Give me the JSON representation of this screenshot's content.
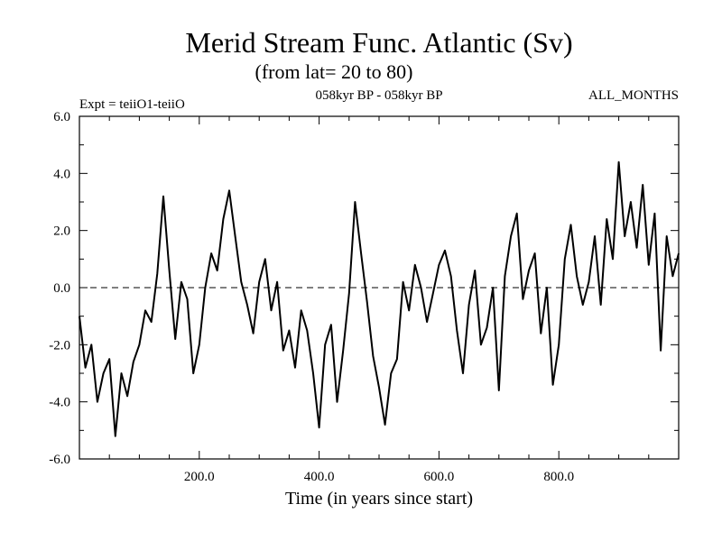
{
  "chart_data": {
    "type": "line",
    "title": "Merid Stream Func. Atlantic (Sv)",
    "subtitle": "(from lat= 20 to 80)",
    "experiment_label": "Expt = teiiO1-teiiO",
    "period_label": "058kyr BP - 058kyr BP",
    "months_label": "ALL_MONTHS",
    "xlabel": "Time (in years since start)",
    "ylabel": "",
    "xlim": [
      0,
      1000
    ],
    "ylim": [
      -6.0,
      6.0
    ],
    "x_tick_values": [
      200,
      400,
      600,
      800
    ],
    "x_tick_labels": [
      "200.0",
      "400.0",
      "600.0",
      "800.0"
    ],
    "y_tick_values": [
      -6,
      -4,
      -2,
      0,
      2,
      4,
      6
    ],
    "y_tick_labels": [
      "-6.0",
      "-4.0",
      "-2.0",
      "0.0",
      "2.0",
      "4.0",
      "6.0"
    ],
    "reference_line": {
      "y": 0,
      "style": "dashed"
    },
    "grid": false,
    "series": [
      {
        "x": [
          0,
          10,
          20,
          30,
          40,
          50,
          60,
          70,
          80,
          90,
          100,
          110,
          120,
          130,
          140,
          150,
          160,
          170,
          180,
          190,
          200,
          210,
          220,
          230,
          240,
          250,
          260,
          270,
          280,
          290,
          300,
          310,
          320,
          330,
          340,
          350,
          360,
          370,
          380,
          390,
          400,
          410,
          420,
          430,
          440,
          450,
          460,
          470,
          480,
          490,
          500,
          510,
          520,
          530,
          540,
          550,
          560,
          570,
          580,
          590,
          600,
          610,
          620,
          630,
          640,
          650,
          660,
          670,
          680,
          690,
          700,
          710,
          720,
          730,
          740,
          750,
          760,
          770,
          780,
          790,
          800,
          810,
          820,
          830,
          840,
          850,
          860,
          870,
          880,
          890,
          900,
          910,
          920,
          930,
          940,
          950,
          960,
          970,
          980,
          990,
          1000
        ],
        "values": [
          -1.0,
          -2.8,
          -2.0,
          -4.0,
          -3.0,
          -2.5,
          -5.2,
          -3.0,
          -3.8,
          -2.6,
          -2.0,
          -0.8,
          -1.2,
          0.5,
          3.2,
          0.6,
          -1.8,
          0.2,
          -0.4,
          -3.0,
          -2.0,
          0.0,
          1.2,
          0.6,
          2.4,
          3.4,
          1.8,
          0.2,
          -0.6,
          -1.6,
          0.2,
          1.0,
          -0.8,
          0.2,
          -2.2,
          -1.5,
          -2.8,
          -0.8,
          -1.5,
          -3.0,
          -4.9,
          -2.0,
          -1.3,
          -4.0,
          -2.2,
          -0.2,
          3.0,
          1.2,
          -0.5,
          -2.4,
          -3.5,
          -4.8,
          -3.0,
          -2.5,
          0.2,
          -0.8,
          0.8,
          0.0,
          -1.2,
          -0.2,
          0.8,
          1.3,
          0.4,
          -1.5,
          -3.0,
          -0.6,
          0.6,
          -2.0,
          -1.4,
          0.0,
          -3.6,
          0.4,
          1.8,
          2.6,
          -0.4,
          0.6,
          1.2,
          -1.6,
          0.0,
          -3.4,
          -2.0,
          1.0,
          2.2,
          0.4,
          -0.6,
          0.2,
          1.8,
          -0.6,
          2.4,
          1.0,
          4.4,
          1.8,
          3.0,
          1.4,
          3.6,
          0.8,
          2.6,
          -2.2,
          1.8,
          0.4,
          1.2
        ],
        "color": "#000000"
      }
    ]
  }
}
